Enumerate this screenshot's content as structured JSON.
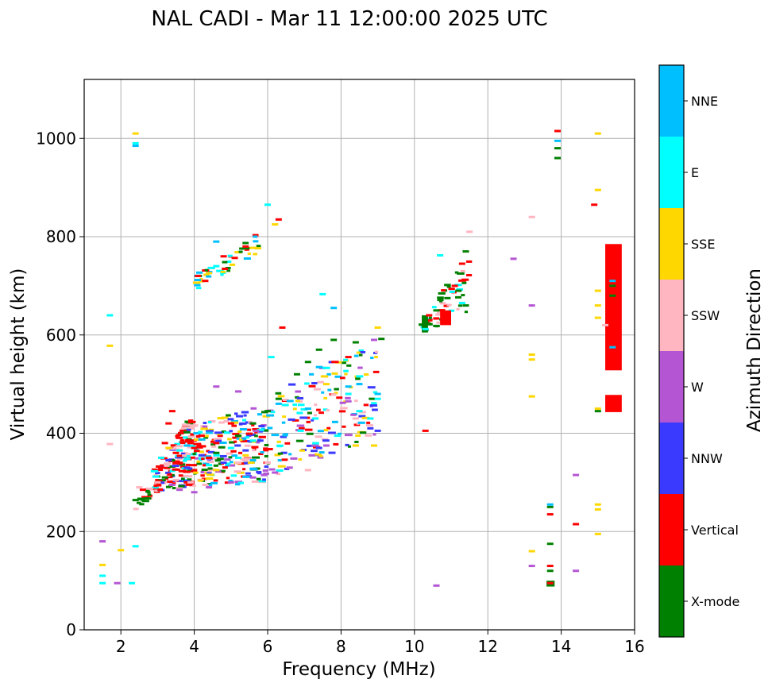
{
  "chart_data": {
    "type": "scatter",
    "title": "NAL CADI - Mar 11 12:00:00 2025 UTC",
    "xlabel": "Frequency (MHz)",
    "ylabel": "Virtual height (km)",
    "xlim": [
      1,
      16
    ],
    "ylim": [
      0,
      1120
    ],
    "xticks": [
      2,
      4,
      6,
      8,
      10,
      12,
      14,
      16
    ],
    "xtick_labels": [
      "2",
      "4",
      "6",
      "8",
      "10",
      "12",
      "14",
      "16"
    ],
    "yticks": [
      0,
      200,
      400,
      600,
      800,
      1000
    ],
    "ytick_labels": [
      "0",
      "200",
      "400",
      "600",
      "800",
      "1000"
    ],
    "grid": true,
    "colorbar": {
      "label": "Azimuth Direction",
      "categories": [
        {
          "name": "X-mode",
          "color": "#008000"
        },
        {
          "name": "Vertical",
          "color": "#ff0000"
        },
        {
          "name": "NNW",
          "color": "#3a3aff"
        },
        {
          "name": "W",
          "color": "#b456d4"
        },
        {
          "name": "SSW",
          "color": "#ffb6c1"
        },
        {
          "name": "SSE",
          "color": "#ffd700"
        },
        {
          "name": "E",
          "color": "#00ffff"
        },
        {
          "name": "NNE",
          "color": "#00bfff"
        }
      ]
    },
    "series": [
      {
        "name": "X-mode",
        "points": [
          [
            2.4,
            264
          ],
          [
            3.2,
            310
          ],
          [
            4.6,
            360
          ],
          [
            5.2,
            395
          ],
          [
            5.6,
            420
          ],
          [
            6.0,
            445
          ],
          [
            6.3,
            470
          ],
          [
            6.8,
            520
          ],
          [
            7.1,
            545
          ],
          [
            7.4,
            570
          ],
          [
            7.8,
            590
          ],
          [
            8.4,
            585
          ],
          [
            9.1,
            592
          ],
          [
            10.3,
            625
          ],
          [
            10.3,
            610
          ],
          [
            10.6,
            650
          ],
          [
            10.9,
            675
          ],
          [
            11.2,
            690
          ],
          [
            11.4,
            660
          ],
          [
            11.4,
            770
          ],
          [
            13.7,
            120
          ],
          [
            13.7,
            175
          ],
          [
            13.7,
            250
          ],
          [
            13.9,
            960
          ],
          [
            13.9,
            980
          ],
          [
            15.0,
            445
          ],
          [
            15.4,
            680
          ],
          [
            15.4,
            700
          ]
        ]
      },
      {
        "name": "Vertical",
        "points": [
          [
            2.6,
            285
          ],
          [
            3.1,
            330
          ],
          [
            3.2,
            380
          ],
          [
            3.3,
            420
          ],
          [
            3.4,
            445
          ],
          [
            3.5,
            360
          ],
          [
            3.6,
            340
          ],
          [
            3.8,
            300
          ],
          [
            3.9,
            380
          ],
          [
            4.0,
            370
          ],
          [
            4.1,
            720
          ],
          [
            4.2,
            395
          ],
          [
            4.3,
            710
          ],
          [
            4.4,
            350
          ],
          [
            4.6,
            380
          ],
          [
            4.8,
            760
          ],
          [
            5.0,
            420
          ],
          [
            5.4,
            780
          ],
          [
            6.3,
            835
          ],
          [
            6.4,
            615
          ],
          [
            8.2,
            555
          ],
          [
            10.3,
            405
          ],
          [
            10.4,
            640
          ],
          [
            10.8,
            630
          ],
          [
            11.1,
            700
          ],
          [
            11.3,
            745
          ],
          [
            13.7,
            95
          ],
          [
            13.7,
            130
          ],
          [
            13.7,
            235
          ],
          [
            13.9,
            1015
          ],
          [
            14.4,
            215
          ],
          [
            14.9,
            865
          ],
          [
            15.3,
            655
          ],
          [
            15.4,
            560
          ],
          [
            15.4,
            740
          ],
          [
            15.4,
            460
          ]
        ]
      },
      {
        "name": "NNW",
        "points": [
          [
            3.3,
            345
          ],
          [
            3.8,
            330
          ],
          [
            4.2,
            355
          ],
          [
            4.8,
            340
          ],
          [
            5.4,
            365
          ],
          [
            5.8,
            385
          ],
          [
            7.4,
            370
          ],
          [
            8.8,
            410
          ],
          [
            9.0,
            405
          ]
        ]
      },
      {
        "name": "W",
        "points": [
          [
            1.5,
            180
          ],
          [
            1.9,
            95
          ],
          [
            3.4,
            295
          ],
          [
            3.6,
            285
          ],
          [
            4.0,
            280
          ],
          [
            4.4,
            290
          ],
          [
            4.6,
            495
          ],
          [
            5.0,
            300
          ],
          [
            5.2,
            485
          ],
          [
            5.6,
            310
          ],
          [
            5.9,
            315
          ],
          [
            6.2,
            320
          ],
          [
            6.6,
            330
          ],
          [
            7.2,
            355
          ],
          [
            7.6,
            375
          ],
          [
            8.2,
            465
          ],
          [
            8.9,
            590
          ],
          [
            10.6,
            90
          ],
          [
            12.7,
            755
          ],
          [
            13.2,
            130
          ],
          [
            13.2,
            660
          ],
          [
            14.4,
            315
          ],
          [
            14.4,
            120
          ]
        ]
      },
      {
        "name": "SSW",
        "points": [
          [
            1.7,
            378
          ],
          [
            2.5,
            290
          ],
          [
            3.0,
            300
          ],
          [
            3.5,
            305
          ],
          [
            3.9,
            300
          ],
          [
            4.3,
            295
          ],
          [
            5.2,
            340
          ],
          [
            6.0,
            340
          ],
          [
            7.1,
            325
          ],
          [
            8.4,
            430
          ],
          [
            11.5,
            810
          ],
          [
            13.2,
            840
          ],
          [
            15.2,
            620
          ]
        ]
      },
      {
        "name": "SSE",
        "points": [
          [
            1.5,
            132
          ],
          [
            1.7,
            578
          ],
          [
            2.0,
            162
          ],
          [
            2.4,
            1010
          ],
          [
            3.3,
            370
          ],
          [
            4.6,
            325
          ],
          [
            5.4,
            355
          ],
          [
            6.2,
            825
          ],
          [
            7.6,
            500
          ],
          [
            8.4,
            375
          ],
          [
            8.9,
            375
          ],
          [
            9.0,
            615
          ],
          [
            13.2,
            160
          ],
          [
            13.2,
            475
          ],
          [
            13.2,
            550
          ],
          [
            13.2,
            560
          ],
          [
            15.0,
            195
          ],
          [
            15.0,
            245
          ],
          [
            15.0,
            255
          ],
          [
            15.0,
            635
          ],
          [
            15.0,
            660
          ],
          [
            15.0,
            690
          ],
          [
            15.0,
            895
          ],
          [
            15.0,
            1010
          ],
          [
            15.0,
            450
          ]
        ]
      },
      {
        "name": "E",
        "points": [
          [
            1.5,
            95
          ],
          [
            1.5,
            110
          ],
          [
            1.7,
            640
          ],
          [
            2.3,
            95
          ],
          [
            2.4,
            170
          ],
          [
            2.4,
            990
          ],
          [
            3.1,
            350
          ],
          [
            3.6,
            365
          ],
          [
            4.4,
            335
          ],
          [
            4.6,
            740
          ],
          [
            5.0,
            370
          ],
          [
            5.2,
            350
          ],
          [
            5.6,
            385
          ],
          [
            6.0,
            865
          ],
          [
            6.1,
            555
          ],
          [
            6.9,
            405
          ],
          [
            7.3,
            430
          ],
          [
            7.5,
            683
          ],
          [
            7.9,
            395
          ],
          [
            8.2,
            480
          ],
          [
            8.5,
            445
          ],
          [
            8.8,
            430
          ],
          [
            9.0,
            470
          ],
          [
            10.3,
            612
          ],
          [
            10.7,
            762
          ],
          [
            11.3,
            665
          ]
        ]
      },
      {
        "name": "NNE",
        "points": [
          [
            2.4,
            985
          ],
          [
            3.8,
            375
          ],
          [
            4.6,
            790
          ],
          [
            5.6,
            345
          ],
          [
            6.3,
            460
          ],
          [
            7.1,
            450
          ],
          [
            7.8,
            655
          ],
          [
            8.2,
            495
          ],
          [
            8.5,
            500
          ],
          [
            9.0,
            480
          ],
          [
            13.7,
            255
          ],
          [
            13.9,
            995
          ],
          [
            15.4,
            710
          ],
          [
            15.4,
            575
          ]
        ]
      }
    ]
  }
}
